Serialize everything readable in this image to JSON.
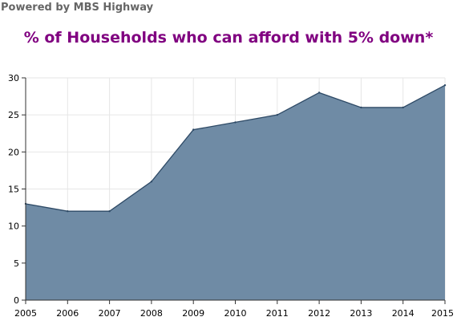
{
  "brand": "Powered by MBS Highway",
  "colors": {
    "title": "#800080",
    "area_fill": "#6f8ba5",
    "area_line": "#2e4a66",
    "grid": "#e6e6e6",
    "axis": "#333333"
  },
  "chart_data": {
    "type": "area",
    "title": "% of Households who can afford with 5% down*",
    "xlabel": "",
    "ylabel": "",
    "x": [
      2005,
      2006,
      2007,
      2008,
      2009,
      2010,
      2011,
      2012,
      2013,
      2014,
      2015
    ],
    "x_tick_labels": [
      "2005",
      "2006",
      "2007",
      "2008",
      "2009",
      "2010",
      "2011",
      "2012",
      "2013",
      "2014",
      "2015"
    ],
    "values": [
      13,
      12,
      12,
      16,
      23,
      24,
      25,
      28,
      26,
      26,
      29
    ],
    "ylim": [
      0,
      30
    ],
    "y_ticks": [
      0,
      5,
      10,
      15,
      20,
      25,
      30
    ],
    "y_tick_labels": [
      "0",
      "5",
      "10",
      "15",
      "20",
      "25",
      "30"
    ],
    "grid": true,
    "legend": "none"
  }
}
